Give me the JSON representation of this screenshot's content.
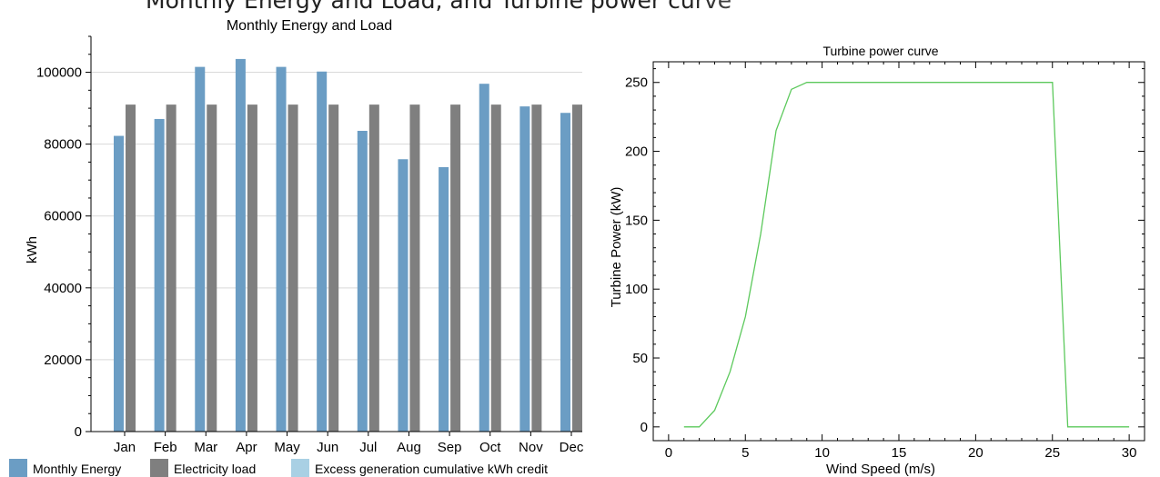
{
  "page_caption": "Monthly Energy and Load, and Turbine power curve",
  "chart_data": [
    {
      "type": "bar",
      "title": "Monthly Energy and Load",
      "xlabel": "",
      "ylabel": "kWh",
      "ylim": [
        0,
        110000
      ],
      "yticks": [
        "0",
        "20000",
        "40000",
        "60000",
        "80000",
        "100000"
      ],
      "grid": true,
      "legend_position": "bottom",
      "categories": [
        "Jan",
        "Feb",
        "Mar",
        "Apr",
        "May",
        "Jun",
        "Jul",
        "Aug",
        "Sep",
        "Oct",
        "Nov",
        "Dec"
      ],
      "series": [
        {
          "name": "Monthly Energy",
          "color": "#6b9dc4",
          "values": [
            82300,
            87000,
            101500,
            103700,
            101500,
            100200,
            83700,
            75800,
            73600,
            96800,
            90500,
            88700
          ]
        },
        {
          "name": "Electricity load",
          "color": "#7f7f7f",
          "values": [
            91000,
            91000,
            91000,
            91000,
            91000,
            91000,
            91000,
            91000,
            91000,
            91000,
            91000,
            91000
          ]
        },
        {
          "name": "Excess generation cumulative kWh credit",
          "color": "#a9d0e4",
          "values": [
            0,
            0,
            0,
            0,
            0,
            0,
            0,
            0,
            0,
            0,
            0,
            0
          ]
        }
      ]
    },
    {
      "type": "line",
      "title": "Turbine power curve",
      "xlabel": "Wind Speed (m/s)",
      "ylabel": "Turbine Power (kW)",
      "xlim": [
        -1,
        31
      ],
      "ylim": [
        -10,
        265
      ],
      "xticks": [
        "0",
        "5",
        "10",
        "15",
        "20",
        "25",
        "30"
      ],
      "yticks": [
        "0",
        "50",
        "100",
        "150",
        "200",
        "250"
      ],
      "grid": false,
      "series": [
        {
          "color": "#5cc95c",
          "x": [
            1,
            2,
            3,
            4,
            5,
            6,
            7,
            8,
            9,
            10,
            11,
            12,
            13,
            14,
            15,
            16,
            17,
            18,
            19,
            20,
            21,
            22,
            23,
            24,
            25,
            26,
            27,
            28,
            29,
            30
          ],
          "y": [
            0,
            0,
            12,
            40,
            80,
            140,
            215,
            245,
            250,
            250,
            250,
            250,
            250,
            250,
            250,
            250,
            250,
            250,
            250,
            250,
            250,
            250,
            250,
            250,
            250,
            0,
            0,
            0,
            0,
            0
          ]
        }
      ]
    }
  ]
}
